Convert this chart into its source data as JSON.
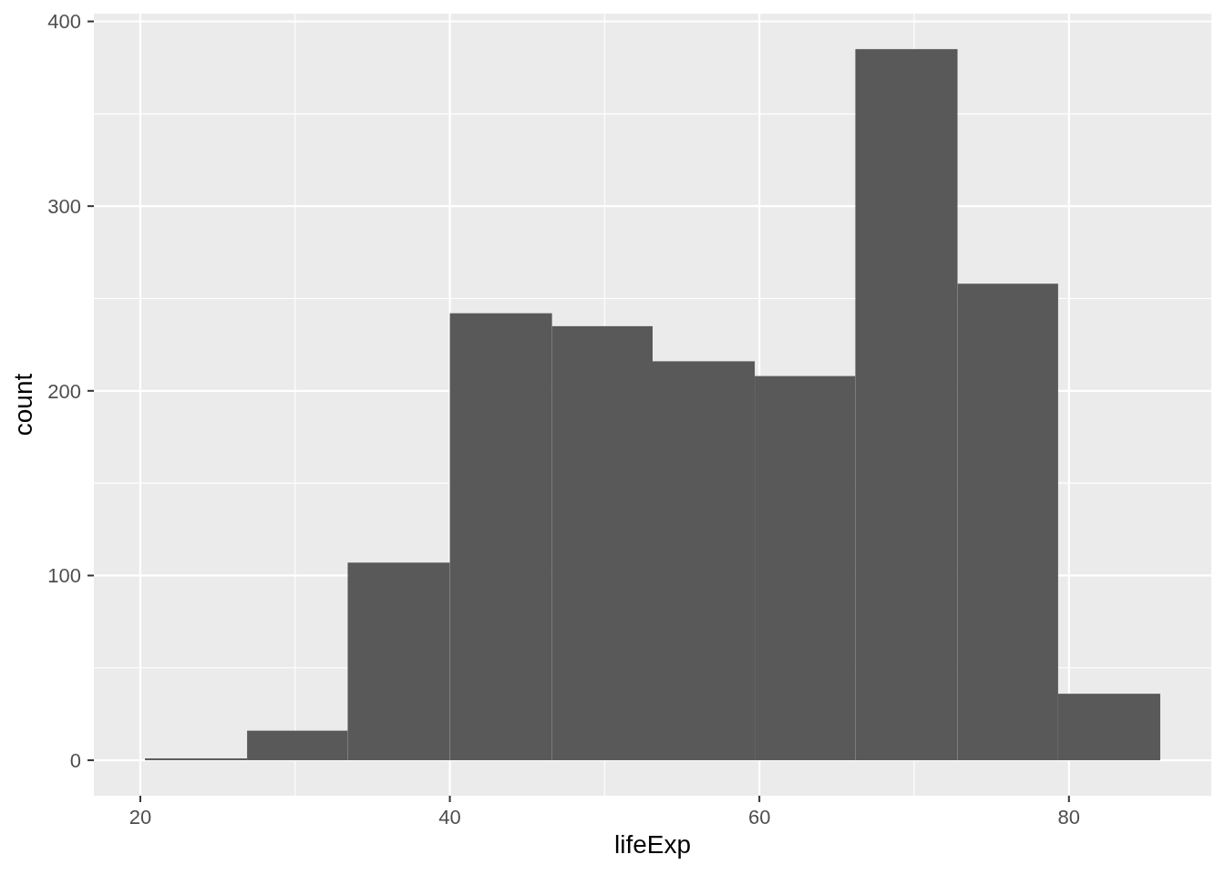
{
  "chart_data": {
    "type": "histogram",
    "xlabel": "lifeExp",
    "ylabel": "count",
    "bins": [
      20.3,
      26.9,
      33.4,
      40.0,
      46.6,
      53.1,
      59.7,
      66.2,
      72.8,
      79.3,
      85.9
    ],
    "values": [
      1,
      16,
      107,
      242,
      235,
      216,
      208,
      385,
      258,
      36
    ],
    "color": "#595959",
    "xlim": [
      17.0,
      89.2
    ],
    "ylim": [
      -19.2,
      404.2
    ],
    "xticks": [
      20,
      40,
      60,
      80
    ],
    "yticks": [
      0,
      100,
      200,
      300,
      400
    ],
    "grid": true
  }
}
